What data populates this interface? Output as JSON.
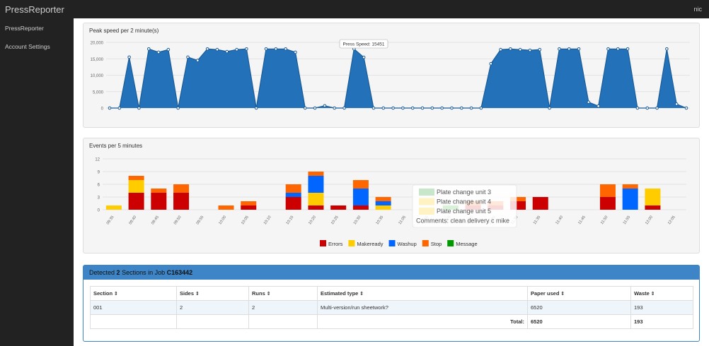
{
  "navbar": {
    "brand": "PressReporter",
    "user": "nic"
  },
  "sidebar": {
    "items": [
      "PressReporter",
      "Account Settings"
    ]
  },
  "chart_data": [
    {
      "type": "area",
      "title": "Peak speed per 2 minute(s)",
      "color": "#2271b9",
      "grid": true,
      "values": [
        0,
        0,
        15500,
        0,
        18000,
        17000,
        17800,
        0,
        15500,
        14500,
        18000,
        17800,
        17200,
        17800,
        18000,
        0,
        18000,
        18000,
        18000,
        17000,
        0,
        0,
        700,
        0,
        0,
        18000,
        15451,
        0,
        0,
        0,
        0,
        0,
        0,
        0,
        0,
        0,
        0,
        0,
        0,
        13500,
        17800,
        18000,
        17800,
        17600,
        17800,
        0,
        18000,
        18000,
        18000,
        1800,
        600,
        18000,
        18000,
        18000,
        0,
        0,
        0,
        18000,
        1200,
        0
      ],
      "ylim": [
        0,
        20000
      ],
      "yticks": [
        0,
        {
          "value": 5000,
          "label": "5,000"
        },
        {
          "value": 10000,
          "label": "10,000"
        },
        {
          "value": 15000,
          "label": "15,000"
        },
        {
          "value": 20000,
          "label": "20,000"
        }
      ],
      "annotation": "Press Speed: 15451"
    },
    {
      "type": "stacked_bar",
      "title": "Events per 5 minutes",
      "grid": true,
      "legend": "bottom",
      "categories": [
        "09:35",
        "09:40",
        "09:45",
        "09:50",
        "09:55",
        "10:00",
        "10:05",
        "10:10",
        "10:15",
        "10:20",
        "10:25",
        "10:30",
        "10:35",
        "11:05",
        "11:10",
        "11:15",
        "11:20",
        "11:25",
        "11:30",
        "11:35",
        "11:40",
        "11:45",
        "11:50",
        "11:55",
        "12:00",
        "12:05"
      ],
      "series": [
        {
          "name": "Errors",
          "color": "#cc0000",
          "values": [
            0,
            4,
            4,
            4,
            0,
            0,
            1,
            0,
            3,
            1,
            1,
            1,
            0,
            0,
            0,
            0,
            1,
            1,
            2,
            3,
            0,
            0,
            3,
            0,
            1,
            0
          ]
        },
        {
          "name": "Makeready",
          "color": "#ffcc00",
          "values": [
            1,
            3,
            0,
            0,
            0,
            0,
            0,
            0,
            0,
            3,
            0,
            0,
            1,
            0,
            0,
            0,
            0,
            0,
            0,
            0,
            0,
            0,
            0,
            0,
            4,
            0
          ]
        },
        {
          "name": "Washup",
          "color": "#0066ff",
          "values": [
            0,
            0,
            0,
            0,
            0,
            0,
            0,
            0,
            1,
            4,
            0,
            4,
            1,
            0,
            0,
            0,
            0,
            0,
            0,
            0,
            0,
            0,
            0,
            5,
            0,
            0
          ]
        },
        {
          "name": "Stop",
          "color": "#ff6600",
          "values": [
            0,
            1,
            1,
            2,
            0,
            1,
            1,
            0,
            2,
            1,
            0,
            2,
            1,
            0,
            0,
            0,
            1,
            1,
            1,
            0,
            0,
            0,
            3,
            1,
            0,
            0
          ]
        },
        {
          "name": "Message",
          "color": "#009900",
          "values": [
            0,
            0,
            0,
            0,
            0,
            0,
            0,
            0,
            0,
            0,
            0,
            0,
            0,
            0,
            0,
            1,
            0,
            0,
            0,
            0,
            0,
            0,
            0,
            0,
            0,
            0
          ]
        }
      ],
      "ylim": [
        0,
        12
      ],
      "yticks": [
        0,
        3,
        6,
        9,
        12
      ],
      "annotations": [
        "Plate change unit 3",
        "Plate change unit 4",
        "Plate change unit 5",
        "Comments: clean delivery c mike"
      ]
    }
  ],
  "table": {
    "title": [
      "Detected",
      "2",
      "Sections in Job",
      "C163442"
    ],
    "columns": [
      "Section",
      "Sides",
      "Runs",
      "Estimated type",
      "Paper used",
      "Waste"
    ],
    "rows": [
      [
        "001",
        "2",
        "2",
        "Multi-version/run sheetwork?",
        "6520",
        "193"
      ]
    ],
    "total": {
      "label": "Total:",
      "values": [
        "6520",
        "193"
      ]
    }
  }
}
